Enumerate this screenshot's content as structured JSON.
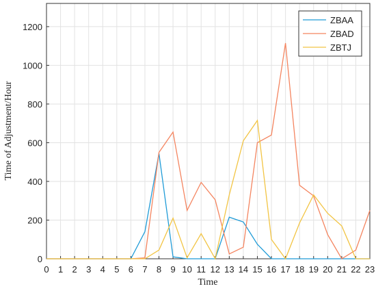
{
  "chart_data": {
    "type": "line",
    "xlabel": "Time",
    "ylabel": "Time of Adjustment/Hour",
    "x": [
      0,
      1,
      2,
      3,
      4,
      5,
      6,
      7,
      8,
      9,
      10,
      11,
      12,
      13,
      14,
      15,
      16,
      17,
      18,
      19,
      20,
      21,
      22,
      23
    ],
    "series": [
      {
        "name": "ZBAA",
        "color": "#1f9bd7",
        "values": [
          0,
          0,
          0,
          0,
          0,
          0,
          0,
          140,
          545,
          10,
          0,
          0,
          0,
          215,
          190,
          75,
          0,
          0,
          0,
          0,
          0,
          0,
          0,
          0
        ]
      },
      {
        "name": "ZBAD",
        "color": "#f4845f",
        "values": [
          0,
          0,
          0,
          0,
          0,
          0,
          0,
          5,
          550,
          655,
          250,
          395,
          305,
          25,
          60,
          600,
          640,
          1115,
          380,
          325,
          125,
          0,
          45,
          250
        ]
      },
      {
        "name": "ZBTJ",
        "color": "#f2c443",
        "values": [
          0,
          0,
          0,
          0,
          0,
          0,
          0,
          0,
          45,
          210,
          5,
          130,
          0,
          330,
          610,
          715,
          100,
          0,
          185,
          330,
          235,
          170,
          0,
          0
        ]
      }
    ],
    "xlim": [
      0,
      23
    ],
    "xticks": [
      0,
      1,
      2,
      3,
      4,
      5,
      6,
      7,
      8,
      9,
      10,
      11,
      12,
      13,
      14,
      15,
      16,
      17,
      18,
      19,
      20,
      21,
      22,
      23
    ],
    "ylim": [
      0,
      1320
    ],
    "yticks": [
      0,
      200,
      400,
      600,
      800,
      1000,
      1200
    ],
    "grid": true,
    "legend": "northeast"
  }
}
